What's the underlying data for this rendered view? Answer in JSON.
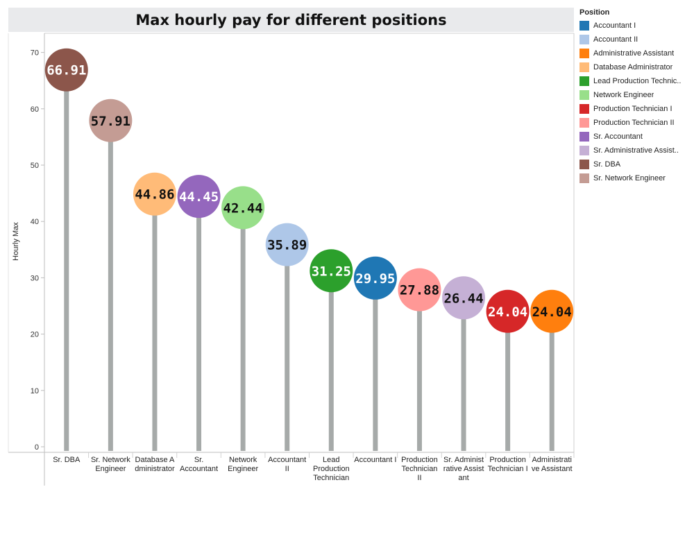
{
  "chart_data": {
    "type": "lollipop",
    "title": "Max hourly pay for different positions",
    "ylabel": "Hourly Max",
    "xlabel": "",
    "ylim": [
      0,
      72
    ],
    "yticks": [
      0,
      10,
      20,
      30,
      40,
      50,
      60,
      70
    ],
    "grid": false,
    "legend_title": "Position",
    "legend_position": "right",
    "points": [
      {
        "category_lines": [
          "Sr. DBA"
        ],
        "value": 66.91,
        "label": "66.91",
        "color": "#8c564b",
        "label_color": "#ffffff"
      },
      {
        "category_lines": [
          "Sr. Network",
          "Engineer"
        ],
        "value": 57.91,
        "label": "57.91",
        "color": "#c49c94",
        "label_color": "#111111"
      },
      {
        "category_lines": [
          "Database A",
          "dministrator"
        ],
        "value": 44.86,
        "label": "44.86",
        "color": "#ffbb78",
        "label_color": "#111111"
      },
      {
        "category_lines": [
          "Sr.",
          "Accountant"
        ],
        "value": 44.45,
        "label": "44.45",
        "color": "#9467bd",
        "label_color": "#ffffff"
      },
      {
        "category_lines": [
          "Network",
          "Engineer"
        ],
        "value": 42.44,
        "label": "42.44",
        "color": "#98df8a",
        "label_color": "#111111"
      },
      {
        "category_lines": [
          "Accountant",
          "II"
        ],
        "value": 35.89,
        "label": "35.89",
        "color": "#aec7e8",
        "label_color": "#111111"
      },
      {
        "category_lines": [
          "Lead",
          "Production",
          "Technician"
        ],
        "value": 31.25,
        "label": "31.25",
        "color": "#2ca02c",
        "label_color": "#ffffff"
      },
      {
        "category_lines": [
          "Accountant I"
        ],
        "value": 29.95,
        "label": "29.95",
        "color": "#1f77b4",
        "label_color": "#ffffff"
      },
      {
        "category_lines": [
          "Production",
          "Technician",
          "II"
        ],
        "value": 27.88,
        "label": "27.88",
        "color": "#ff9896",
        "label_color": "#111111"
      },
      {
        "category_lines": [
          "Sr. Administ",
          "rative Assist",
          "ant"
        ],
        "value": 26.44,
        "label": "26.44",
        "color": "#c5b0d5",
        "label_color": "#111111"
      },
      {
        "category_lines": [
          "Production",
          "Technician I"
        ],
        "value": 24.04,
        "label": "24.04",
        "color": "#d62728",
        "label_color": "#ffffff"
      },
      {
        "category_lines": [
          "Administrati",
          "ve Assistant"
        ],
        "value": 24.04,
        "label": "24.04",
        "color": "#ff7f0e",
        "label_color": "#111111"
      }
    ],
    "legend": [
      {
        "label": "Accountant I",
        "color": "#1f77b4"
      },
      {
        "label": "Accountant II",
        "color": "#aec7e8"
      },
      {
        "label": "Administrative Assistant",
        "color": "#ff7f0e"
      },
      {
        "label": "Database Administrator",
        "color": "#ffbb78"
      },
      {
        "label": "Lead Production Technic..",
        "color": "#2ca02c"
      },
      {
        "label": "Network Engineer",
        "color": "#98df8a"
      },
      {
        "label": "Production Technician I",
        "color": "#d62728"
      },
      {
        "label": "Production Technician II",
        "color": "#ff9896"
      },
      {
        "label": "Sr. Accountant",
        "color": "#9467bd"
      },
      {
        "label": "Sr. Administrative Assist..",
        "color": "#c5b0d5"
      },
      {
        "label": "Sr. DBA",
        "color": "#8c564b"
      },
      {
        "label": "Sr. Network Engineer",
        "color": "#c49c94"
      }
    ],
    "stem_color": "#a6aaa9"
  }
}
